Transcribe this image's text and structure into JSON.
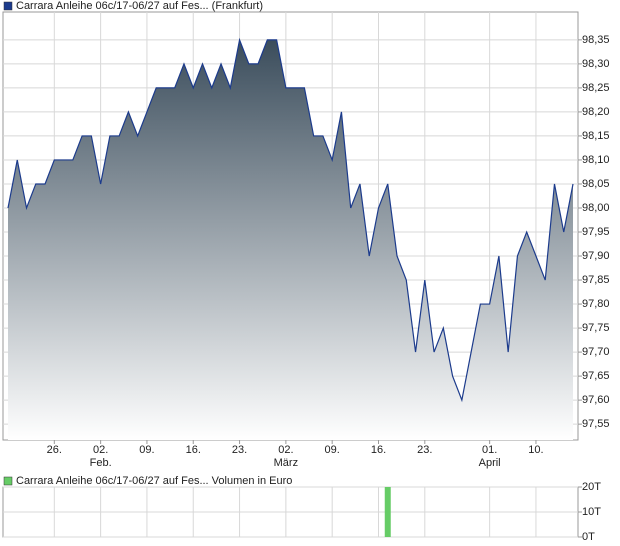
{
  "chart_data": [
    {
      "type": "area",
      "ylim": [
        97.517,
        98.408
      ],
      "yticks": [
        {
          "value": 97.55,
          "label": "97,55"
        },
        {
          "value": 97.6,
          "label": "97,60"
        },
        {
          "value": 97.65,
          "label": "97,65"
        },
        {
          "value": 97.7,
          "label": "97,70"
        },
        {
          "value": 97.75,
          "label": "97,75"
        },
        {
          "value": 97.8,
          "label": "97,80"
        },
        {
          "value": 97.85,
          "label": "97,85"
        },
        {
          "value": 97.9,
          "label": "97,90"
        },
        {
          "value": 97.95,
          "label": "97,95"
        },
        {
          "value": 98.0,
          "label": "98,00"
        },
        {
          "value": 98.05,
          "label": "98,05"
        },
        {
          "value": 98.1,
          "label": "98,10"
        },
        {
          "value": 98.15,
          "label": "98,15"
        },
        {
          "value": 98.2,
          "label": "98,20"
        },
        {
          "value": 98.25,
          "label": "98,25"
        },
        {
          "value": 98.3,
          "label": "98,30"
        },
        {
          "value": 98.35,
          "label": "98,35"
        }
      ],
      "categories": [
        null,
        null,
        null,
        null,
        null,
        "26.",
        null,
        null,
        null,
        null,
        "02.",
        null,
        null,
        null,
        null,
        "09.",
        null,
        null,
        null,
        null,
        "16.",
        null,
        null,
        null,
        null,
        "23.",
        null,
        null,
        null,
        null,
        "02.",
        null,
        null,
        null,
        null,
        "09.",
        null,
        null,
        null,
        null,
        "16.",
        null,
        null,
        null,
        null,
        "23.",
        null,
        null,
        null,
        null,
        null,
        null,
        "01.",
        null,
        null,
        null,
        null,
        "10.",
        null,
        null,
        null,
        null
      ],
      "months": [
        null,
        null,
        null,
        null,
        null,
        null,
        null,
        null,
        null,
        null,
        "Feb.",
        null,
        null,
        null,
        null,
        null,
        null,
        null,
        null,
        null,
        null,
        null,
        null,
        null,
        null,
        null,
        null,
        null,
        null,
        null,
        "März",
        null,
        null,
        null,
        null,
        null,
        null,
        null,
        null,
        null,
        null,
        null,
        null,
        null,
        null,
        null,
        null,
        null,
        null,
        null,
        null,
        null,
        "April",
        null,
        null,
        null,
        null,
        null,
        null,
        null,
        null,
        null
      ],
      "grid": true,
      "series": [
        {
          "name": "Carrara Anleihe 06c/17-06/27 auf Fes... (Frankfurt)",
          "color": "#1c3b8c",
          "values": [
            98.0,
            98.1,
            98.0,
            98.05,
            98.05,
            98.1,
            98.1,
            98.1,
            98.15,
            98.15,
            98.05,
            98.15,
            98.15,
            98.2,
            98.15,
            98.2,
            98.25,
            98.25,
            98.25,
            98.3,
            98.25,
            98.3,
            98.25,
            98.3,
            98.25,
            98.35,
            98.3,
            98.3,
            98.35,
            98.35,
            98.25,
            98.25,
            98.25,
            98.15,
            98.15,
            98.1,
            98.2,
            98.0,
            98.05,
            97.9,
            98.0,
            98.05,
            97.9,
            97.85,
            97.7,
            97.85,
            97.7,
            97.75,
            97.65,
            97.6,
            97.7,
            97.8,
            97.8,
            97.9,
            97.7,
            97.9,
            97.95,
            97.9,
            97.85,
            98.05,
            97.95,
            98.05
          ]
        }
      ]
    },
    {
      "type": "bar",
      "ylim": [
        0,
        20000
      ],
      "yticks": [
        {
          "value": 0,
          "label": "0T"
        },
        {
          "value": 10000,
          "label": "10T"
        },
        {
          "value": 20000,
          "label": "20T"
        }
      ],
      "grid": true,
      "series": [
        {
          "name": "Carrara Anleihe 06c/17-06/27 auf Fes... Volumen in Euro",
          "color": "#66cc66",
          "values": [
            0,
            0,
            0,
            0,
            0,
            0,
            0,
            0,
            0,
            0,
            0,
            0,
            0,
            0,
            0,
            0,
            0,
            0,
            0,
            0,
            0,
            0,
            0,
            0,
            0,
            0,
            0,
            0,
            0,
            0,
            0,
            0,
            0,
            0,
            0,
            0,
            0,
            0,
            0,
            0,
            0,
            20000,
            0,
            0,
            0,
            0,
            0,
            0,
            0,
            0,
            0,
            0,
            0,
            0,
            0,
            0,
            0,
            0,
            0,
            0,
            0,
            0
          ]
        }
      ]
    }
  ]
}
